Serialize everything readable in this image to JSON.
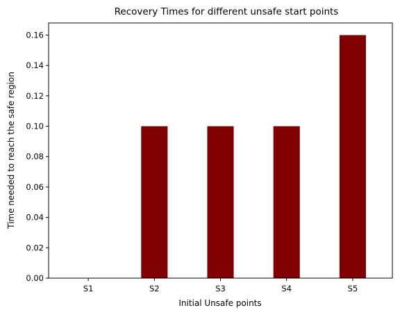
{
  "chart_data": {
    "type": "bar",
    "title": "Recovery Times for different unsafe start points",
    "xlabel": "Initial Unsafe points",
    "ylabel": "Time needed to reach the safe region",
    "categories": [
      "S1",
      "S2",
      "S3",
      "S4",
      "S5"
    ],
    "values": [
      0.0,
      0.1,
      0.1,
      0.1,
      0.16
    ],
    "ylim": [
      0,
      0.168
    ],
    "yticks": [
      "0.00",
      "0.02",
      "0.04",
      "0.06",
      "0.08",
      "0.10",
      "0.12",
      "0.14",
      "0.16"
    ],
    "bar_color": "#800000",
    "grid": false,
    "legend": false
  }
}
